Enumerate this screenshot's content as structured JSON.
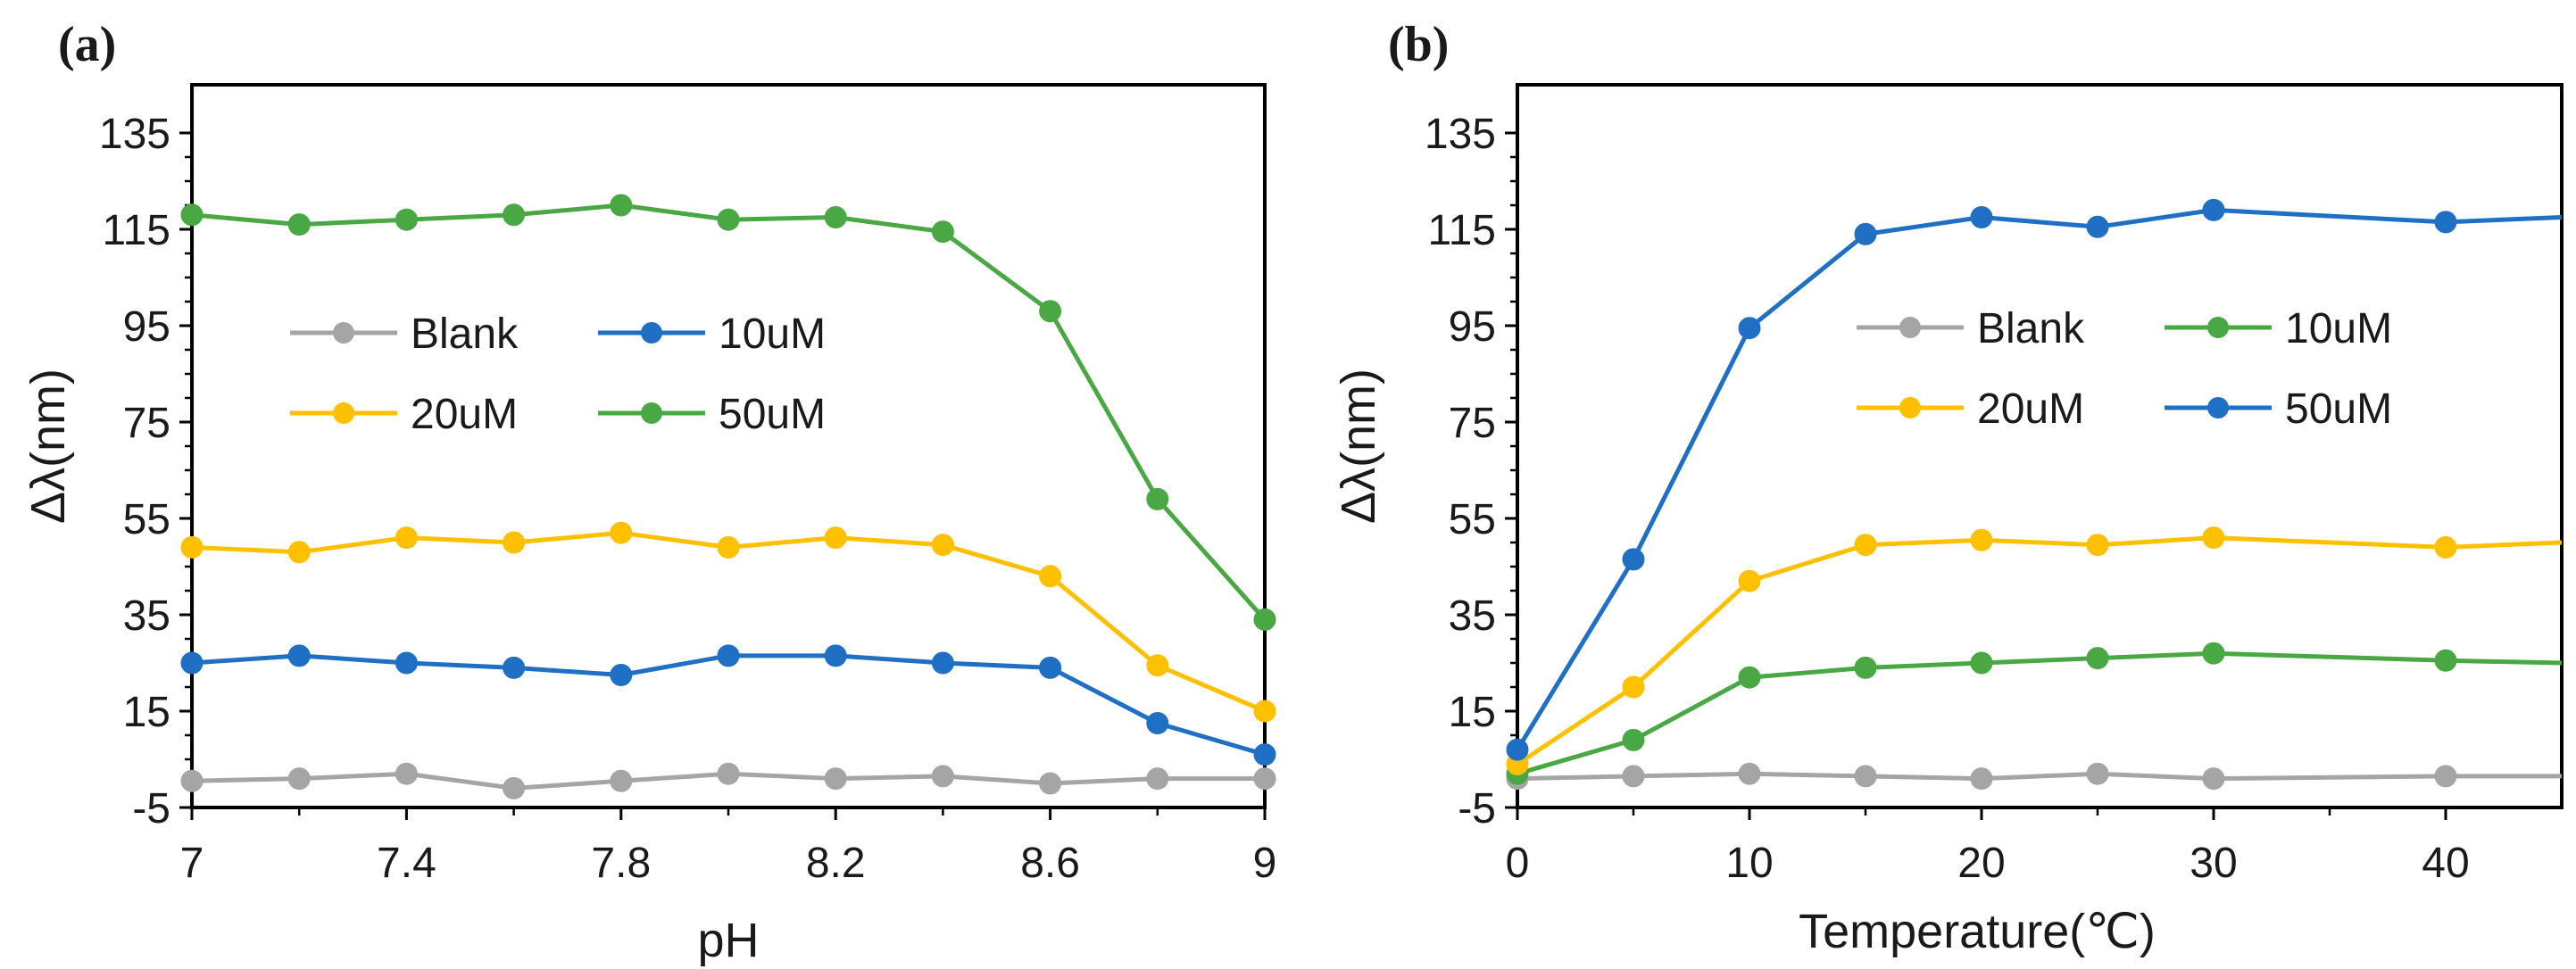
{
  "chart_data": [
    {
      "panel_label": "(a)",
      "type": "line",
      "xlabel": "pH",
      "ylabel": "Δλ(nm)",
      "xlim": [
        7,
        9
      ],
      "ylim": [
        -5,
        145
      ],
      "x_ticks": [
        "7",
        "7.4",
        "7.8",
        "8.2",
        "8.6",
        "9"
      ],
      "x_tick_values": [
        7,
        7.4,
        7.8,
        8.2,
        8.6,
        9
      ],
      "y_ticks": [
        "-5",
        "15",
        "35",
        "55",
        "75",
        "95",
        "115",
        "135"
      ],
      "y_tick_values": [
        -5,
        15,
        35,
        55,
        75,
        95,
        115,
        135
      ],
      "x": [
        7.0,
        7.2,
        7.4,
        7.6,
        7.8,
        8.0,
        8.2,
        8.4,
        8.6,
        8.8,
        9.0
      ],
      "series": [
        {
          "name": "Blank",
          "color": "#a5a5a5",
          "values": [
            0.5,
            1,
            2,
            -1,
            0.5,
            2,
            1,
            1.5,
            0,
            1,
            1
          ]
        },
        {
          "name": "10uM",
          "color": "#1f6fc5",
          "values": [
            25,
            26.5,
            25,
            24,
            22.5,
            26.5,
            26.5,
            25,
            24,
            12.5,
            6
          ]
        },
        {
          "name": "20uM",
          "color": "#ffc000",
          "values": [
            49,
            48,
            51,
            50,
            52,
            49,
            51,
            49.5,
            43,
            24.5,
            15
          ]
        },
        {
          "name": "50uM",
          "color": "#4aa844",
          "values": [
            118,
            116,
            117,
            118,
            120,
            117,
            117.5,
            114.5,
            98,
            59,
            34
          ]
        }
      ],
      "legend": {
        "position": "center-left",
        "order": [
          "Blank",
          "10uM",
          "20uM",
          "50uM"
        ]
      }
    },
    {
      "panel_label": "(b)",
      "type": "line",
      "xlabel": "Temperature(℃)",
      "ylabel": "Δλ(nm)",
      "xlim": [
        0,
        45
      ],
      "ylim": [
        -5,
        145
      ],
      "x_ticks": [
        "0",
        "10",
        "20",
        "30",
        "40"
      ],
      "x_tick_values": [
        0,
        10,
        20,
        30,
        40
      ],
      "y_ticks": [
        "-5",
        "15",
        "35",
        "55",
        "75",
        "95",
        "115",
        "135"
      ],
      "y_tick_values": [
        -5,
        15,
        35,
        55,
        75,
        95,
        115,
        135
      ],
      "x": [
        0,
        5,
        10,
        15,
        20,
        25,
        30,
        40
      ],
      "series": [
        {
          "name": "Blank",
          "color": "#a5a5a5",
          "values": [
            1,
            1.5,
            2,
            1.5,
            1,
            2,
            1,
            1.5
          ],
          "tail": {
            "x": 45,
            "y": 1.5
          }
        },
        {
          "name": "10uM",
          "color": "#4aa844",
          "values": [
            2,
            9,
            22,
            24,
            25,
            26,
            27,
            25.5
          ],
          "tail": {
            "x": 45,
            "y": 25
          }
        },
        {
          "name": "20uM",
          "color": "#ffc000",
          "values": [
            4,
            20,
            42,
            49.5,
            50.5,
            49.5,
            51,
            49
          ],
          "tail": {
            "x": 45,
            "y": 50
          }
        },
        {
          "name": "50uM",
          "color": "#1f6fc5",
          "values": [
            7,
            46.5,
            94.5,
            114,
            117.5,
            115.5,
            119,
            116.5
          ],
          "tail": {
            "x": 45,
            "y": 117.5
          }
        }
      ],
      "legend": {
        "position": "center-right",
        "order": [
          "Blank",
          "10uM",
          "20uM",
          "50uM"
        ]
      }
    }
  ]
}
